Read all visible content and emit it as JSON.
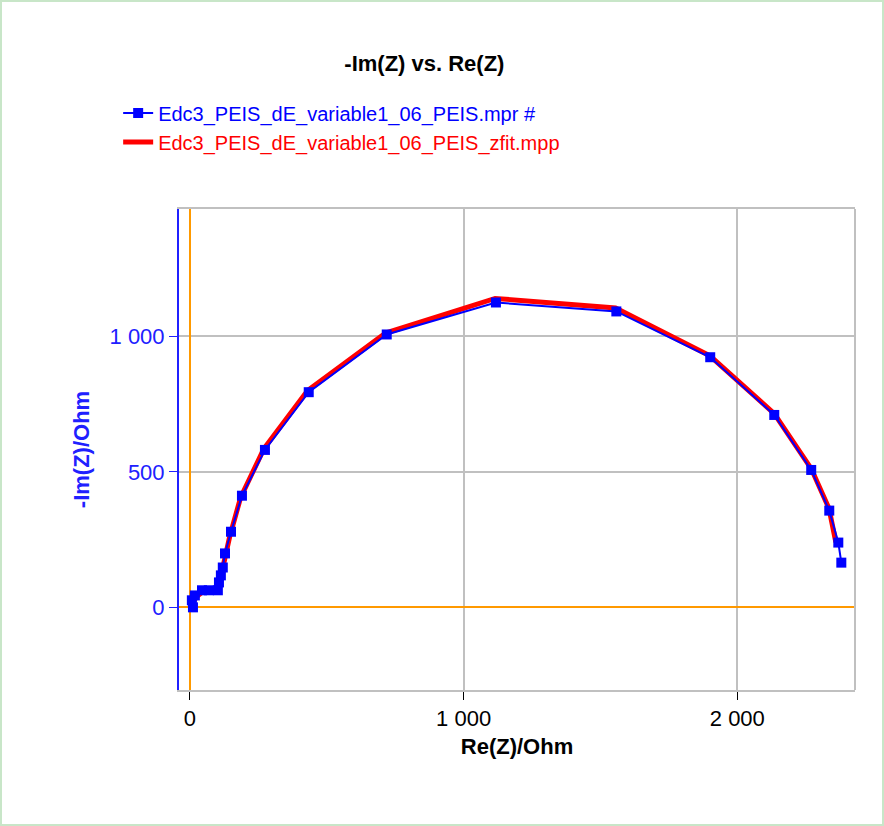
{
  "chart_data": {
    "type": "scatter",
    "title": "-Im(Z) vs. Re(Z)",
    "x_label": "Re(Z)/Ohm",
    "y_label": "-Im(Z)/Ohm",
    "xlim": [
      -40,
      2430
    ],
    "ylim": [
      -305,
      1470
    ],
    "xticks": [
      0,
      {
        "value": 1000,
        "label": "1 000"
      },
      {
        "value": 2000,
        "label": "2 000"
      }
    ],
    "yticks": [
      0,
      500,
      {
        "value": 1000,
        "label": "1 000"
      }
    ],
    "grid": true,
    "legend": "top",
    "series": [
      {
        "name": "Edc3_PEIS_dE_variable1_06_PEIS.mpr #",
        "color": "#0000ff",
        "marker": "square",
        "line_style": "solid",
        "x": [
          11,
          7,
          18,
          44,
          69,
          102,
          106,
          113,
          120,
          128,
          150,
          190,
          274,
          434,
          719,
          1118,
          1558,
          1901,
          2135,
          2270,
          2336,
          2369,
          2380
        ],
        "values": [
          0,
          26,
          44,
          63,
          63,
          63,
          92,
          118,
          147,
          199,
          279,
          412,
          581,
          794,
          1007,
          1125,
          1092,
          923,
          710,
          507,
          357,
          239,
          165
        ]
      },
      {
        "name": "Edc3_PEIS_dE_variable1_06_PEIS_zfit.mpp",
        "color": "#ff0000",
        "line_style": "solid",
        "x": [
          0,
          10,
          25,
          55,
          100,
          112,
          125,
          145,
          185,
          270,
          430,
          715,
          1115,
          1555,
          1900,
          2135,
          2270,
          2335,
          2360
        ],
        "values": [
          0,
          20,
          40,
          65,
          70,
          110,
          170,
          260,
          405,
          585,
          800,
          1012,
          1140,
          1105,
          928,
          715,
          512,
          365,
          240
        ]
      }
    ]
  }
}
